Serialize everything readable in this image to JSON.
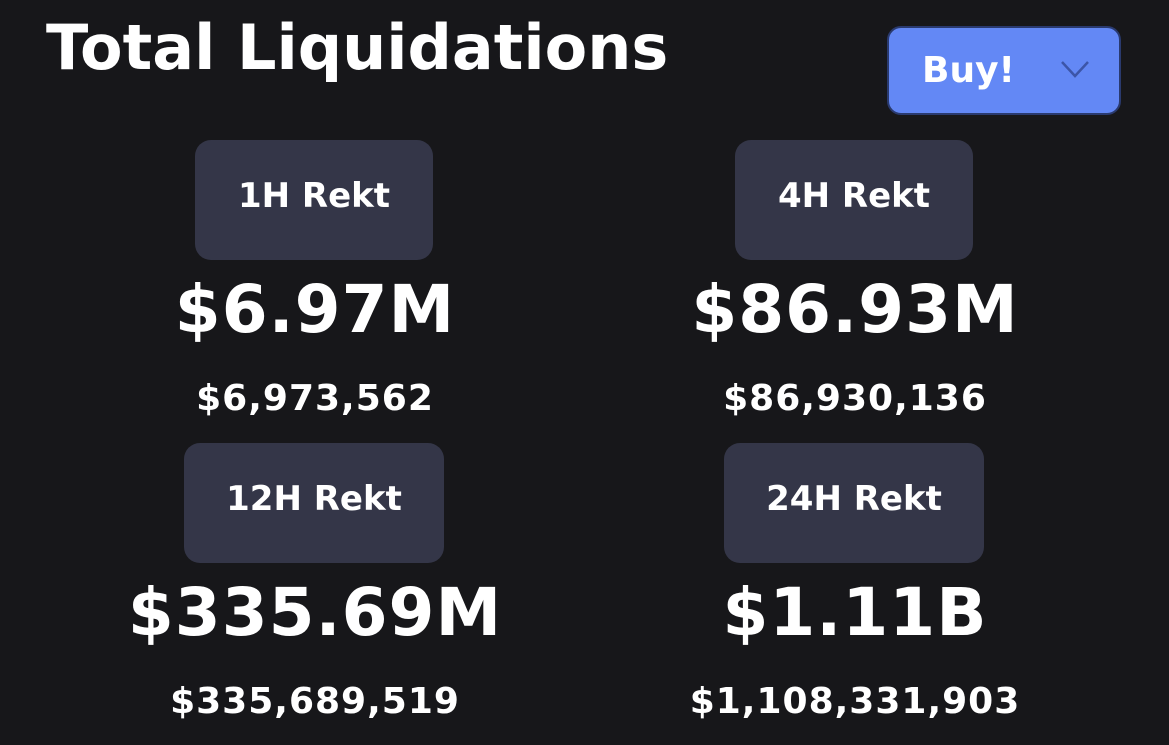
{
  "header": {
    "title": "Total Liquidations"
  },
  "buy_button": {
    "label": "Buy!",
    "icon": "chevron-down-icon",
    "color": "#6388f5"
  },
  "cards": [
    {
      "tag": "1H Rekt",
      "value_short": "$6.97M",
      "value_full": "$6,973,562"
    },
    {
      "tag": "4H Rekt",
      "value_short": "$86.93M",
      "value_full": "$86,930,136"
    },
    {
      "tag": "12H Rekt",
      "value_short": "$335.69M",
      "value_full": "$335,689,519"
    },
    {
      "tag": "24H Rekt",
      "value_short": "$1.11B",
      "value_full": "$1,108,331,903"
    }
  ],
  "colors": {
    "background": "#17171a",
    "tag_background": "#343648",
    "text": "#ffffff"
  }
}
